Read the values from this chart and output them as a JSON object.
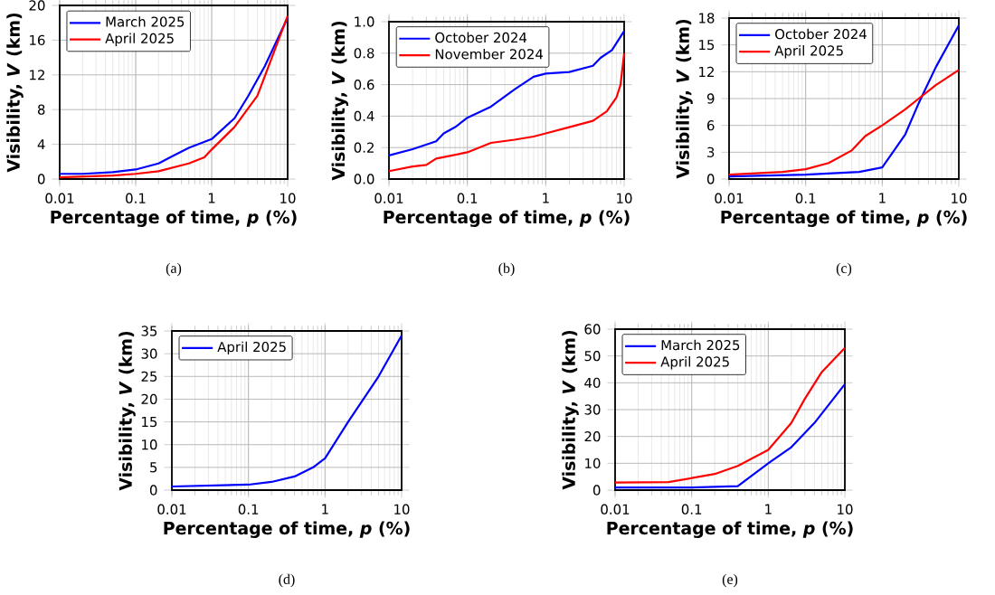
{
  "chart_data": [
    {
      "type": "line",
      "xlabel": "Percentage of time, *p* (%)",
      "ylabel": "Visibility, *V* (km)",
      "annotations": [
        "(a)"
      ],
      "log": "x",
      "grid": true,
      "legend": "top left",
      "xlim": [
        0.01,
        10
      ],
      "xticks": [
        0.01,
        0.1,
        1,
        10
      ],
      "ylim": [
        0,
        20
      ],
      "yticks": [
        0,
        4,
        8,
        12,
        16,
        20
      ],
      "series": [
        {
          "name": "March 2025",
          "color": "#0000ff",
          "x": [
            0.01,
            0.02,
            0.05,
            0.1,
            0.2,
            0.3,
            0.5,
            1,
            2,
            3,
            5,
            10
          ],
          "values": [
            0.6,
            0.6,
            0.8,
            1.1,
            1.8,
            2.6,
            3.6,
            4.6,
            7,
            9.5,
            13,
            18.6
          ]
        },
        {
          "name": "April 2025",
          "color": "#ff0000",
          "x": [
            0.01,
            0.05,
            0.1,
            0.2,
            0.5,
            0.8,
            1,
            2,
            4,
            10
          ],
          "values": [
            0.2,
            0.4,
            0.6,
            0.9,
            1.8,
            2.5,
            3.4,
            6,
            9.6,
            18.8
          ]
        }
      ]
    },
    {
      "type": "line",
      "xlabel": "Percentage of time, *p* (%)",
      "ylabel": "Visibility, *V* (km)",
      "annotations": [
        "(b)"
      ],
      "log": "x",
      "grid": true,
      "legend": "top left",
      "xlim": [
        0.01,
        10
      ],
      "xticks": [
        0.01,
        0.1,
        1,
        10
      ],
      "ylim": [
        0,
        1
      ],
      "yticks": [
        {
          "value": 0,
          "label": "0.0"
        },
        0.2,
        0.4,
        0.6,
        0.8,
        {
          "value": 1,
          "label": "1.0"
        }
      ],
      "series": [
        {
          "name": "October 2024",
          "color": "#0000ff",
          "x": [
            0.01,
            0.02,
            0.04,
            0.05,
            0.07,
            0.1,
            0.2,
            0.4,
            0.7,
            1,
            2,
            4,
            5,
            7,
            10
          ],
          "values": [
            0.15,
            0.19,
            0.24,
            0.29,
            0.33,
            0.39,
            0.46,
            0.57,
            0.65,
            0.67,
            0.68,
            0.72,
            0.77,
            0.82,
            0.94
          ]
        },
        {
          "name": "November 2024",
          "color": "#ff0000",
          "x": [
            0.01,
            0.02,
            0.03,
            0.04,
            0.1,
            0.2,
            0.4,
            0.7,
            1,
            2,
            4,
            6,
            8,
            9,
            10
          ],
          "values": [
            0.05,
            0.08,
            0.09,
            0.13,
            0.17,
            0.23,
            0.25,
            0.27,
            0.29,
            0.33,
            0.37,
            0.43,
            0.52,
            0.6,
            0.8
          ]
        }
      ]
    },
    {
      "type": "line",
      "xlabel": "Percentage of time, *p* (%)",
      "ylabel": "Visibility, *V* (km)",
      "annotations": [
        "(c)"
      ],
      "log": "x",
      "grid": true,
      "legend": "top left",
      "xlim": [
        0.01,
        10
      ],
      "xticks": [
        0.01,
        0.1,
        1,
        10
      ],
      "ylim": [
        0,
        18
      ],
      "yticks": [
        0,
        3,
        6,
        9,
        12,
        15,
        18
      ],
      "series": [
        {
          "name": "October 2024",
          "color": "#0000ff",
          "x": [
            0.01,
            0.1,
            0.5,
            1,
            2,
            3,
            5,
            10
          ],
          "values": [
            0.3,
            0.5,
            0.8,
            1.3,
            5,
            8.5,
            12.5,
            17.2
          ]
        },
        {
          "name": "April 2025",
          "color": "#ff0000",
          "x": [
            0.01,
            0.05,
            0.1,
            0.2,
            0.4,
            0.6,
            1,
            2,
            3,
            5,
            10
          ],
          "values": [
            0.5,
            0.8,
            1.1,
            1.8,
            3.2,
            4.8,
            6,
            7.8,
            9,
            10.5,
            12.2
          ]
        }
      ]
    },
    {
      "type": "line",
      "xlabel": "Percentage of time, *p* (%)",
      "ylabel": "Visibility, *V* (km)",
      "annotations": [
        "(d)"
      ],
      "log": "x",
      "grid": true,
      "legend": "top left",
      "xlim": [
        0.01,
        10
      ],
      "xticks": [
        0.01,
        0.1,
        1,
        10
      ],
      "ylim": [
        0,
        35
      ],
      "yticks": [
        0,
        5,
        10,
        15,
        20,
        25,
        30,
        35
      ],
      "series": [
        {
          "name": "April 2025",
          "color": "#0000ff",
          "x": [
            0.01,
            0.1,
            0.2,
            0.4,
            0.7,
            1,
            2,
            5,
            10
          ],
          "values": [
            0.8,
            1.2,
            1.8,
            3,
            5,
            7,
            15,
            25,
            34
          ]
        }
      ]
    },
    {
      "type": "line",
      "xlabel": "Percentage of time, *p* (%)",
      "ylabel": "Visibility, *V* (km)",
      "annotations": [
        "(e)"
      ],
      "log": "x",
      "grid": true,
      "legend": "top left",
      "xlim": [
        0.01,
        10
      ],
      "xticks": [
        0.01,
        0.1,
        1,
        10
      ],
      "ylim": [
        0,
        60
      ],
      "yticks": [
        0,
        10,
        20,
        30,
        40,
        50,
        60
      ],
      "series": [
        {
          "name": "March 2025",
          "color": "#0000ff",
          "x": [
            0.01,
            0.1,
            0.4,
            1,
            2,
            4,
            10
          ],
          "values": [
            1,
            1,
            1.5,
            10,
            16,
            25,
            39.5
          ]
        },
        {
          "name": "April 2025",
          "color": "#ff0000",
          "x": [
            0.01,
            0.05,
            0.1,
            0.2,
            0.4,
            1,
            2,
            3,
            5,
            10
          ],
          "values": [
            2.8,
            3,
            4.5,
            6,
            9,
            15,
            25,
            34,
            44,
            53
          ]
        }
      ]
    }
  ]
}
